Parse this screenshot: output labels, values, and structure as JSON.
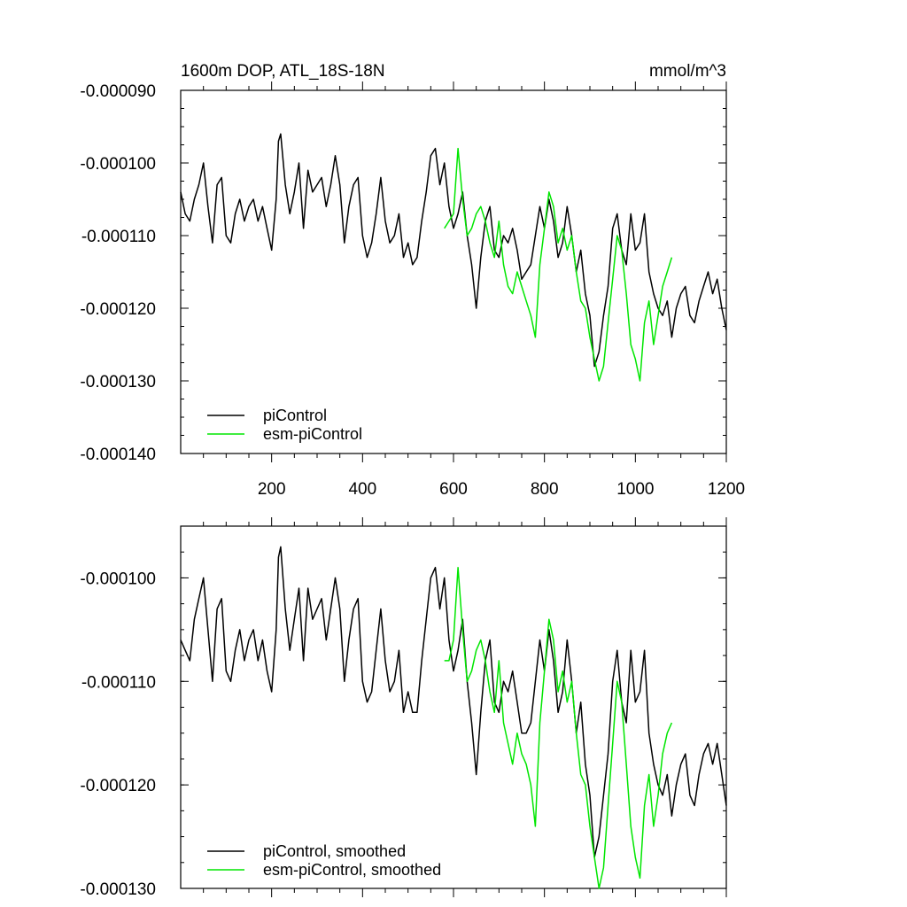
{
  "colors": {
    "piControl": "#000000",
    "esm_piControl": "#00e600",
    "axis": "#000000"
  },
  "chart_data": [
    {
      "type": "line",
      "title": "1600m DOP, ATL_18S-18N",
      "units": "mmol/m^3",
      "xlim": [
        0,
        1200
      ],
      "ylim": [
        -0.00014,
        -9e-05
      ],
      "xticks": [
        200,
        400,
        600,
        800,
        1000,
        1200
      ],
      "xtick_labels": [
        "200",
        "400",
        "600",
        "800",
        "1000",
        "1200"
      ],
      "yticks": [
        -9e-05,
        -0.0001,
        -0.00011,
        -0.00012,
        -0.00013,
        -0.00014
      ],
      "ytick_labels": [
        "-0.000090",
        "-0.000100",
        "-0.000110",
        "-0.000120",
        "-0.000130",
        "-0.000140"
      ],
      "legend_position": "bottom-left",
      "series": [
        {
          "name": "piControl",
          "color": "#000000",
          "x": [
            0,
            10,
            20,
            30,
            40,
            50,
            60,
            70,
            80,
            90,
            100,
            110,
            120,
            130,
            140,
            150,
            160,
            170,
            180,
            190,
            200,
            210,
            215,
            220,
            230,
            240,
            250,
            260,
            270,
            280,
            290,
            300,
            310,
            320,
            330,
            340,
            350,
            360,
            370,
            380,
            390,
            400,
            410,
            420,
            430,
            440,
            450,
            460,
            470,
            480,
            490,
            500,
            510,
            520,
            530,
            540,
            550,
            560,
            570,
            580,
            590,
            600,
            610,
            620,
            630,
            640,
            650,
            660,
            670,
            680,
            690,
            700,
            710,
            720,
            730,
            740,
            750,
            760,
            770,
            780,
            790,
            800,
            810,
            820,
            830,
            840,
            850,
            860,
            870,
            880,
            890,
            900,
            910,
            920,
            930,
            940,
            950,
            960,
            970,
            980,
            990,
            1000,
            1010,
            1020,
            1030,
            1040,
            1050,
            1060,
            1070,
            1080,
            1090,
            1100,
            1110,
            1120,
            1130,
            1140,
            1150,
            1160,
            1170,
            1180,
            1190,
            1200
          ],
          "y": [
            -0.000104,
            -0.000107,
            -0.000108,
            -0.000105,
            -0.000103,
            -0.0001,
            -0.000106,
            -0.000111,
            -0.000103,
            -0.000102,
            -0.00011,
            -0.000111,
            -0.000107,
            -0.000105,
            -0.000108,
            -0.000106,
            -0.000105,
            -0.000108,
            -0.000106,
            -0.000109,
            -0.000112,
            -0.000105,
            -9.7e-05,
            -9.6e-05,
            -0.000103,
            -0.000107,
            -0.000104,
            -0.0001,
            -0.000109,
            -0.000101,
            -0.000104,
            -0.000103,
            -0.000102,
            -0.000106,
            -0.000103,
            -9.9e-05,
            -0.000103,
            -0.000111,
            -0.000106,
            -0.000103,
            -0.000102,
            -0.00011,
            -0.000113,
            -0.000111,
            -0.000107,
            -0.000102,
            -0.000108,
            -0.000111,
            -0.00011,
            -0.000107,
            -0.000113,
            -0.000111,
            -0.000114,
            -0.000113,
            -0.000108,
            -0.000104,
            -9.9e-05,
            -9.8e-05,
            -0.000103,
            -0.0001,
            -0.000106,
            -0.000109,
            -0.000107,
            -0.000104,
            -0.00011,
            -0.000114,
            -0.00012,
            -0.000113,
            -0.000108,
            -0.000106,
            -0.000112,
            -0.000113,
            -0.00011,
            -0.000111,
            -0.000109,
            -0.000112,
            -0.000116,
            -0.000115,
            -0.000114,
            -0.00011,
            -0.000106,
            -0.000109,
            -0.000105,
            -0.000108,
            -0.000113,
            -0.000111,
            -0.000106,
            -0.00011,
            -0.000115,
            -0.000112,
            -0.000118,
            -0.000121,
            -0.000128,
            -0.000126,
            -0.000121,
            -0.000117,
            -0.000109,
            -0.000107,
            -0.000112,
            -0.000114,
            -0.000107,
            -0.000112,
            -0.000111,
            -0.000107,
            -0.000115,
            -0.000118,
            -0.00012,
            -0.000121,
            -0.000119,
            -0.000124,
            -0.00012,
            -0.000118,
            -0.000117,
            -0.000121,
            -0.000122,
            -0.000119,
            -0.000117,
            -0.000115,
            -0.000118,
            -0.000116,
            -0.00012,
            -0.000123
          ]
        },
        {
          "name": "esm-piControl",
          "color": "#00e600",
          "x": [
            580,
            590,
            600,
            610,
            620,
            630,
            640,
            650,
            660,
            670,
            680,
            690,
            700,
            710,
            720,
            730,
            740,
            750,
            760,
            770,
            780,
            790,
            800,
            810,
            820,
            830,
            840,
            850,
            860,
            870,
            880,
            890,
            900,
            910,
            920,
            930,
            940,
            950,
            960,
            970,
            980,
            990,
            1000,
            1010,
            1020,
            1030,
            1040,
            1050,
            1060,
            1070,
            1080
          ],
          "y": [
            -0.000109,
            -0.000108,
            -0.000107,
            -9.8e-05,
            -0.000105,
            -0.00011,
            -0.000109,
            -0.000107,
            -0.000106,
            -0.000108,
            -0.000111,
            -0.000113,
            -0.000108,
            -0.000114,
            -0.000117,
            -0.000118,
            -0.000115,
            -0.000117,
            -0.000119,
            -0.000121,
            -0.000124,
            -0.000114,
            -0.000109,
            -0.000104,
            -0.000106,
            -0.000111,
            -0.000109,
            -0.000112,
            -0.00011,
            -0.000115,
            -0.000119,
            -0.00012,
            -0.000124,
            -0.000127,
            -0.00013,
            -0.000128,
            -0.000122,
            -0.000116,
            -0.00011,
            -0.000112,
            -0.000118,
            -0.000125,
            -0.000127,
            -0.00013,
            -0.000122,
            -0.000119,
            -0.000125,
            -0.000121,
            -0.000117,
            -0.000115,
            -0.000113
          ]
        }
      ]
    },
    {
      "type": "line",
      "title": "",
      "xlim": [
        0,
        1200
      ],
      "ylim": [
        -0.00013,
        -9.5e-05
      ],
      "xticks": [
        200,
        400,
        600,
        800,
        1000,
        1200
      ],
      "xtick_labels": [],
      "yticks": [
        -0.0001,
        -0.00011,
        -0.00012,
        -0.00013
      ],
      "ytick_labels": [
        "-0.000100",
        "-0.000110",
        "-0.000120",
        "-0.000130"
      ],
      "legend_position": "bottom-left",
      "series": [
        {
          "name": "piControl, smoothed",
          "color": "#000000",
          "x": [
            0,
            10,
            20,
            30,
            40,
            50,
            60,
            70,
            80,
            90,
            100,
            110,
            120,
            130,
            140,
            150,
            160,
            170,
            180,
            190,
            200,
            210,
            215,
            220,
            230,
            240,
            250,
            260,
            270,
            280,
            290,
            300,
            310,
            320,
            330,
            340,
            350,
            360,
            370,
            380,
            390,
            400,
            410,
            420,
            430,
            440,
            450,
            460,
            470,
            480,
            490,
            500,
            510,
            520,
            530,
            540,
            550,
            560,
            570,
            580,
            590,
            600,
            610,
            620,
            630,
            640,
            650,
            660,
            670,
            680,
            690,
            700,
            710,
            720,
            730,
            740,
            750,
            760,
            770,
            780,
            790,
            800,
            810,
            820,
            830,
            840,
            850,
            860,
            870,
            880,
            890,
            900,
            910,
            920,
            930,
            940,
            950,
            960,
            970,
            980,
            990,
            1000,
            1010,
            1020,
            1030,
            1040,
            1050,
            1060,
            1070,
            1080,
            1090,
            1100,
            1110,
            1120,
            1130,
            1140,
            1150,
            1160,
            1170,
            1180,
            1190,
            1200
          ],
          "y": [
            -0.000106,
            -0.000107,
            -0.000108,
            -0.000104,
            -0.000102,
            -0.0001,
            -0.000105,
            -0.00011,
            -0.000103,
            -0.000102,
            -0.000109,
            -0.00011,
            -0.000107,
            -0.000105,
            -0.000108,
            -0.000106,
            -0.000105,
            -0.000108,
            -0.000106,
            -0.000109,
            -0.000111,
            -0.000105,
            -9.8e-05,
            -9.7e-05,
            -0.000103,
            -0.000107,
            -0.000104,
            -0.000101,
            -0.000108,
            -0.000101,
            -0.000104,
            -0.000103,
            -0.000102,
            -0.000106,
            -0.000103,
            -0.0001,
            -0.000103,
            -0.00011,
            -0.000106,
            -0.000103,
            -0.000102,
            -0.00011,
            -0.000112,
            -0.000111,
            -0.000107,
            -0.000103,
            -0.000108,
            -0.000111,
            -0.00011,
            -0.000107,
            -0.000113,
            -0.000111,
            -0.000113,
            -0.000113,
            -0.000108,
            -0.000104,
            -0.0001,
            -9.9e-05,
            -0.000103,
            -0.0001,
            -0.000106,
            -0.000109,
            -0.000107,
            -0.000104,
            -0.00011,
            -0.000114,
            -0.000119,
            -0.000113,
            -0.000108,
            -0.000106,
            -0.000112,
            -0.000113,
            -0.00011,
            -0.000111,
            -0.000109,
            -0.000112,
            -0.000115,
            -0.000115,
            -0.000114,
            -0.00011,
            -0.000106,
            -0.000109,
            -0.000105,
            -0.000108,
            -0.000113,
            -0.000111,
            -0.000106,
            -0.00011,
            -0.000115,
            -0.000112,
            -0.000118,
            -0.000121,
            -0.000127,
            -0.000125,
            -0.000121,
            -0.000117,
            -0.00011,
            -0.000107,
            -0.000112,
            -0.000114,
            -0.000107,
            -0.000112,
            -0.000111,
            -0.000107,
            -0.000115,
            -0.000118,
            -0.00012,
            -0.000121,
            -0.000119,
            -0.000123,
            -0.00012,
            -0.000118,
            -0.000117,
            -0.000121,
            -0.000122,
            -0.000119,
            -0.000117,
            -0.000116,
            -0.000118,
            -0.000116,
            -0.000119,
            -0.000122
          ]
        },
        {
          "name": "esm-piControl, smoothed",
          "color": "#00e600",
          "x": [
            580,
            590,
            600,
            610,
            620,
            630,
            640,
            650,
            660,
            670,
            680,
            690,
            700,
            710,
            720,
            730,
            740,
            750,
            760,
            770,
            780,
            790,
            800,
            810,
            820,
            830,
            840,
            850,
            860,
            870,
            880,
            890,
            900,
            910,
            920,
            930,
            940,
            950,
            960,
            970,
            980,
            990,
            1000,
            1010,
            1020,
            1030,
            1040,
            1050,
            1060,
            1070,
            1080
          ],
          "y": [
            -0.000108,
            -0.000108,
            -0.000106,
            -9.9e-05,
            -0.000105,
            -0.00011,
            -0.000109,
            -0.000107,
            -0.000106,
            -0.000108,
            -0.000111,
            -0.000113,
            -0.000108,
            -0.000114,
            -0.000116,
            -0.000118,
            -0.000115,
            -0.000117,
            -0.000118,
            -0.00012,
            -0.000124,
            -0.000114,
            -0.000109,
            -0.000104,
            -0.000106,
            -0.000111,
            -0.000109,
            -0.000112,
            -0.00011,
            -0.000115,
            -0.000119,
            -0.00012,
            -0.000124,
            -0.000127,
            -0.00013,
            -0.000128,
            -0.000122,
            -0.000116,
            -0.00011,
            -0.000112,
            -0.000118,
            -0.000124,
            -0.000127,
            -0.000129,
            -0.000122,
            -0.000119,
            -0.000124,
            -0.000121,
            -0.000117,
            -0.000115,
            -0.000114
          ]
        }
      ]
    }
  ]
}
